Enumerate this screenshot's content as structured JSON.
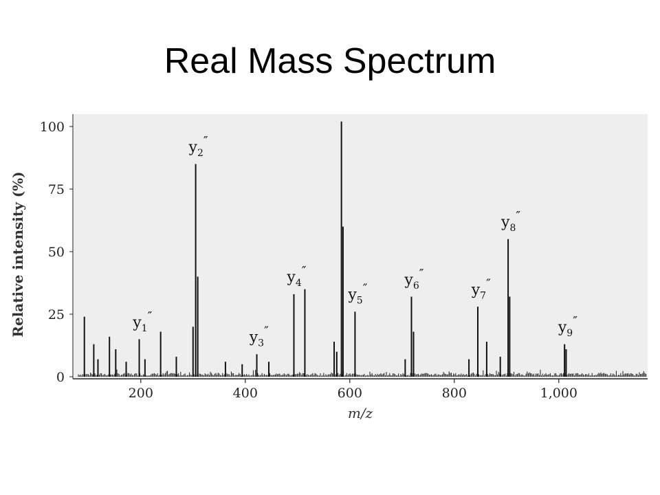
{
  "page": {
    "title": "Real Mass Spectrum"
  },
  "chart_data": {
    "type": "bar",
    "title": "Real Mass Spectrum",
    "xlabel": "m/z",
    "ylabel": "Relative intensity (%)",
    "xlim": [
      70,
      1170
    ],
    "ylim": [
      0,
      105
    ],
    "xticks": [
      200,
      400,
      600,
      800,
      1000
    ],
    "xtick_labels": [
      "200",
      "400",
      "600",
      "800",
      "1,000"
    ],
    "yticks": [
      0,
      25,
      50,
      75,
      100
    ],
    "grid": false,
    "legend": "none",
    "colors": {
      "plot_background": "#eeeeee",
      "peaks": "#111111"
    },
    "peaks": [
      {
        "x": 92,
        "y": 24
      },
      {
        "x": 110,
        "y": 13
      },
      {
        "x": 118,
        "y": 7
      },
      {
        "x": 140,
        "y": 16
      },
      {
        "x": 152,
        "y": 11
      },
      {
        "x": 172,
        "y": 6
      },
      {
        "x": 197,
        "y": 15
      },
      {
        "x": 208,
        "y": 7
      },
      {
        "x": 238,
        "y": 18
      },
      {
        "x": 268,
        "y": 8
      },
      {
        "x": 300,
        "y": 20
      },
      {
        "x": 305,
        "y": 85
      },
      {
        "x": 309,
        "y": 40
      },
      {
        "x": 362,
        "y": 6
      },
      {
        "x": 394,
        "y": 5
      },
      {
        "x": 422,
        "y": 9
      },
      {
        "x": 445,
        "y": 6
      },
      {
        "x": 493,
        "y": 33
      },
      {
        "x": 514,
        "y": 35
      },
      {
        "x": 570,
        "y": 14
      },
      {
        "x": 575,
        "y": 10
      },
      {
        "x": 584,
        "y": 102
      },
      {
        "x": 587,
        "y": 60
      },
      {
        "x": 610,
        "y": 26
      },
      {
        "x": 706,
        "y": 7
      },
      {
        "x": 718,
        "y": 32
      },
      {
        "x": 722,
        "y": 18
      },
      {
        "x": 828,
        "y": 7
      },
      {
        "x": 845,
        "y": 28
      },
      {
        "x": 862,
        "y": 14
      },
      {
        "x": 888,
        "y": 8
      },
      {
        "x": 903,
        "y": 55
      },
      {
        "x": 906,
        "y": 32
      },
      {
        "x": 1011,
        "y": 13
      },
      {
        "x": 1014,
        "y": 11
      }
    ],
    "annotations": [
      {
        "ion": "y",
        "index": "1",
        "mark": "″",
        "x": 198,
        "y": 16
      },
      {
        "ion": "y",
        "index": "2",
        "mark": "″",
        "x": 305,
        "y": 86
      },
      {
        "ion": "y",
        "index": "3",
        "mark": "″",
        "x": 421,
        "y": 10
      },
      {
        "ion": "y",
        "index": "4",
        "mark": "″",
        "x": 493,
        "y": 34
      },
      {
        "ion": "y",
        "index": "5",
        "mark": "″",
        "x": 610,
        "y": 27
      },
      {
        "ion": "y",
        "index": "6",
        "mark": "″",
        "x": 718,
        "y": 33
      },
      {
        "ion": "y",
        "index": "7",
        "mark": "″",
        "x": 846,
        "y": 29
      },
      {
        "ion": "y",
        "index": "8",
        "mark": "″",
        "x": 903,
        "y": 56
      },
      {
        "ion": "y",
        "index": "9",
        "mark": "″",
        "x": 1012,
        "y": 14
      }
    ]
  }
}
